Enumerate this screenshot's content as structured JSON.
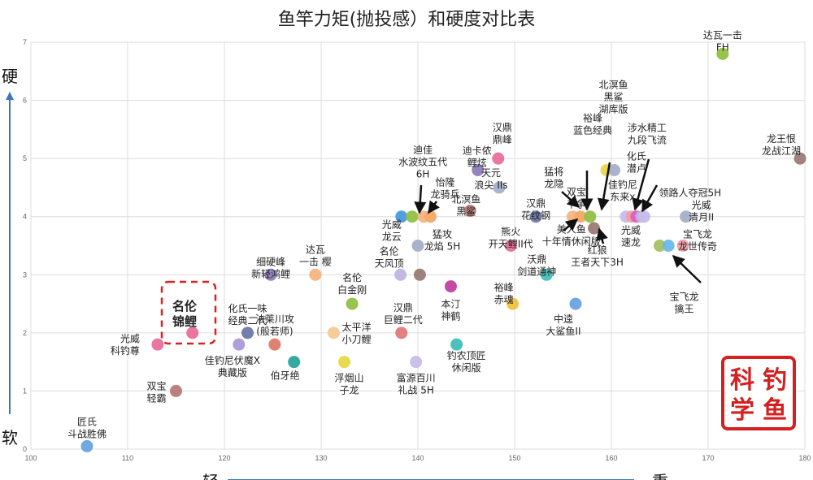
{
  "chart_data": {
    "type": "scatter",
    "title": "鱼竿力矩(抛投感）和硬度对比表",
    "xlabel": "轻",
    "xlabel_max": "重",
    "ylabel": "硬",
    "ylabel_min": "软",
    "xlim": [
      100,
      180
    ],
    "ylim": [
      0,
      7
    ],
    "x_ticks": [
      100,
      110,
      120,
      130,
      140,
      150,
      160,
      170,
      180
    ],
    "y_ticks": [
      0,
      1,
      2,
      3,
      4,
      5,
      6,
      7
    ],
    "grid": true,
    "highlight_label": [
      "名伦",
      "锦鲤"
    ],
    "seal_text": [
      "科",
      "钓",
      "学",
      "鱼"
    ],
    "points": [
      {
        "x": 105.8,
        "y": 0.05,
        "color": "#6aa3e0",
        "label": [
          "匠氏",
          "斗战胜佛"
        ]
      },
      {
        "x": 113.1,
        "y": 1.8,
        "color": "#e8709a",
        "label": [
          "光威",
          "科钓尊"
        ]
      },
      {
        "x": 115.0,
        "y": 1.0,
        "color": "#b57b78",
        "label": [
          "双宝",
          "轻霸"
        ]
      },
      {
        "x": 116.7,
        "y": 2.0,
        "color": "#e8709a",
        "label": []
      },
      {
        "x": 121.5,
        "y": 1.8,
        "color": "#a99ad8",
        "label": [
          "佳钓尼伏魔X",
          "典藏版"
        ]
      },
      {
        "x": 122.4,
        "y": 2.0,
        "color": "#6e78a8",
        "label": [
          "化氏一味",
          "经典二代"
        ]
      },
      {
        "x": 125.2,
        "y": 1.8,
        "color": "#e07a6a",
        "label": [
          "法莱川攻",
          "(般若师)"
        ]
      },
      {
        "x": 124.8,
        "y": 3.0,
        "color": "#8f7cbc",
        "label": [
          "细硬峰",
          "新轻鸿鲤"
        ]
      },
      {
        "x": 129.4,
        "y": 3.0,
        "color": "#f4b480",
        "label": [
          "达瓦",
          "一击 樱"
        ]
      },
      {
        "x": 127.2,
        "y": 1.5,
        "color": "#2aa59b",
        "label": [
          "伯牙绝"
        ]
      },
      {
        "x": 131.3,
        "y": 2.0,
        "color": "#f6c994",
        "label": [
          "太平洋",
          "小刀鲤"
        ]
      },
      {
        "x": 133.2,
        "y": 2.5,
        "color": "#92c042",
        "label": [
          "名伦",
          "白金刚"
        ]
      },
      {
        "x": 132.4,
        "y": 1.5,
        "color": "#e8d848",
        "label": [
          "浮烟山",
          "子龙"
        ]
      },
      {
        "x": 138.2,
        "y": 3.0,
        "color": "#c0b4e0",
        "label": [
          "名伦",
          "天风顶"
        ]
      },
      {
        "x": 140.2,
        "y": 3.0,
        "color": "#9b7b76",
        "label": []
      },
      {
        "x": 138.3,
        "y": 2.0,
        "color": "#e07a7a",
        "label": [
          "汉鼎",
          "巨鲤二代"
        ]
      },
      {
        "x": 139.8,
        "y": 1.5,
        "color": "#c8bcea",
        "label": [
          "富源百川",
          "礼战 5H"
        ]
      },
      {
        "x": 138.3,
        "y": 4.0,
        "color": "#4a9ae2",
        "label": [
          "光威",
          "龙云"
        ]
      },
      {
        "x": 139.4,
        "y": 4.0,
        "color": "#92c042",
        "label": []
      },
      {
        "x": 140.6,
        "y": 4.0,
        "color": "#f4b480",
        "label": [
          "迪佳",
          "水波纹五代",
          "6H"
        ]
      },
      {
        "x": 141.3,
        "y": 4.0,
        "color": "#f4a866",
        "label": [
          "怡隆",
          "龙骑兵"
        ]
      },
      {
        "x": 140.0,
        "y": 3.5,
        "color": "#a4b0c8",
        "label": [
          "猛攻",
          "龙焰 5H"
        ]
      },
      {
        "x": 143.4,
        "y": 2.8,
        "color": "#c040a0",
        "label": [
          "本汀",
          "神鹤"
        ]
      },
      {
        "x": 144.0,
        "y": 1.8,
        "color": "#40c0b8",
        "label": [
          "钓农顶匠",
          "休闲版"
        ]
      },
      {
        "x": 146.2,
        "y": 4.8,
        "color": "#8f7cbc",
        "label": [
          "迪卡侬",
          "鲤炫"
        ]
      },
      {
        "x": 148.3,
        "y": 5.0,
        "color": "#e8709a",
        "label": [
          "汉鼎",
          "鼎峰"
        ]
      },
      {
        "x": 148.4,
        "y": 4.5,
        "color": "#a4b0c8",
        "label": [
          "天元",
          "浪尖 IIs"
        ]
      },
      {
        "x": 145.4,
        "y": 4.1,
        "color": "#b57b78",
        "label": [
          "北溟鱼",
          "黑鲨"
        ]
      },
      {
        "x": 149.6,
        "y": 3.5,
        "color": "#e8709a",
        "label": [
          "熊火",
          "开天鲤II代"
        ]
      },
      {
        "x": 149.8,
        "y": 2.5,
        "color": "#f0c040",
        "label": [
          "裕峰",
          "赤魂"
        ]
      },
      {
        "x": 153.3,
        "y": 3.0,
        "color": "#40c0b8",
        "label": [
          "沃鼎",
          "剑道通神"
        ]
      },
      {
        "x": 152.2,
        "y": 4.0,
        "color": "#6e78a8",
        "label": [
          "汉鼎",
          "花纹钢"
        ]
      },
      {
        "x": 156.3,
        "y": 2.5,
        "color": "#6aa3e0",
        "label": [
          "中逵",
          "大鲨鱼II"
        ]
      },
      {
        "x": 156.0,
        "y": 4.0,
        "color": "#f4b480",
        "label": [
          "猛将",
          "龙隐"
        ]
      },
      {
        "x": 156.8,
        "y": 4.0,
        "color": "#f4a866",
        "label": [
          "双宝",
          "千争"
        ]
      },
      {
        "x": 157.8,
        "y": 4.0,
        "color": "#92c042",
        "label": [
          "美人鱼",
          "十年情休闲版"
        ]
      },
      {
        "x": 158.2,
        "y": 3.8,
        "color": "#9b7b76",
        "label": [
          "红狼",
          "王者天下3H"
        ]
      },
      {
        "x": 159.5,
        "y": 4.8,
        "color": "#e8d848",
        "label": [
          "裕峰",
          "蓝色经典"
        ]
      },
      {
        "x": 160.3,
        "y": 4.8,
        "color": "#a4b0c8",
        "label": [
          "北溟鱼",
          "黑鲨",
          "湖库版"
        ]
      },
      {
        "x": 161.5,
        "y": 4.0,
        "color": "#c8bcea",
        "label": [
          "佳钓尼",
          "东来x"
        ]
      },
      {
        "x": 162.1,
        "y": 4.0,
        "color": "#f0a0a8",
        "label": [
          "光威",
          "速龙"
        ]
      },
      {
        "x": 162.6,
        "y": 4.0,
        "color": "#d860c0",
        "label": [
          "化氏",
          "潜卢"
        ]
      },
      {
        "x": 163.1,
        "y": 4.0,
        "color": "#c0b4e0",
        "label": [
          "涉水精工",
          "九段飞流"
        ]
      },
      {
        "x": 163.4,
        "y": 4.0,
        "color": "#c8bcea",
        "label": [
          "领路人夺冠5H"
        ]
      },
      {
        "x": 167.7,
        "y": 4.0,
        "color": "#a4b0c8",
        "label": [
          "光威",
          "清月II"
        ]
      },
      {
        "x": 165.0,
        "y": 3.5,
        "color": "#a8c060",
        "label": [
          "宝飞龙",
          "擒王"
        ]
      },
      {
        "x": 165.9,
        "y": 3.5,
        "color": "#6ab8e8",
        "label": []
      },
      {
        "x": 167.4,
        "y": 3.5,
        "color": "#f0a0a8",
        "label": [
          "宝飞龙",
          "龙世传奇"
        ]
      },
      {
        "x": 171.5,
        "y": 6.8,
        "color": "#92c042",
        "label": [
          "达瓦一击",
          "FH"
        ]
      },
      {
        "x": 179.5,
        "y": 5.0,
        "color": "#9b7b76",
        "label": [
          "龙王恨",
          "龙战江湖"
        ]
      }
    ]
  }
}
